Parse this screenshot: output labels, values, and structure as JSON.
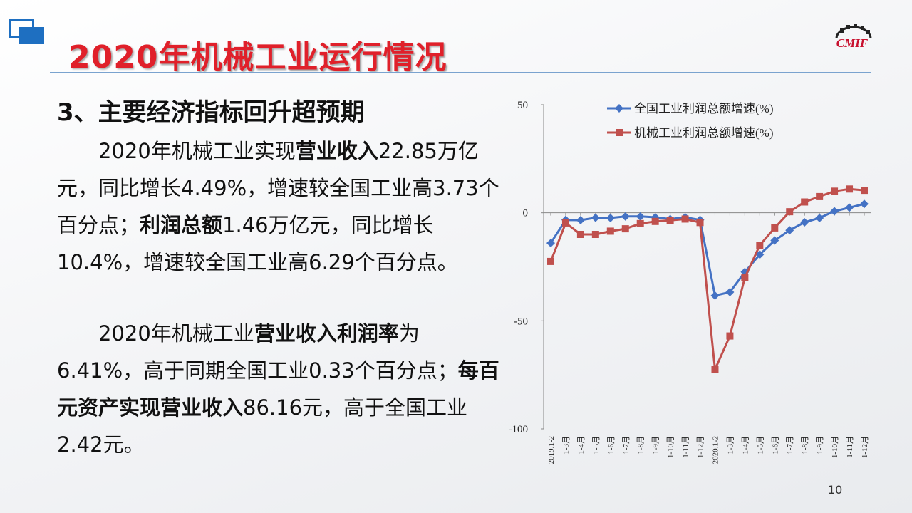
{
  "slide": {
    "title": "2020年机械工业运行情况",
    "heading": "3、主要经济指标回升超预期",
    "page_number": "10",
    "brand_logo_text": "CMIF"
  },
  "para1": {
    "s1": "　　2020年机械工业实现",
    "b1": "营业收入",
    "s2": "22.85万亿元，同比增长4.49%，增速较全国工业高3.73个百分点；",
    "b2": "利润总额",
    "s3": "1.46万亿元，同比增长10.4%，增速较全国工业高6.29个百分点。"
  },
  "para2": {
    "s1": "　　2020年机械工业",
    "b1": "营业收入利润率",
    "s2": "为6.41%，高于同期全国工业0.33个百分点；",
    "b2": "每百元资产实现营业收入",
    "s3": "86.16元，高于全国工业2.42元。"
  },
  "colors": {
    "accent_title": "#e0202a",
    "blue_series": "#4472c4",
    "red_series": "#c0504d",
    "logo_blue": "#1e6fc1"
  },
  "chart_data": {
    "type": "line",
    "categories": [
      "2019.1-2",
      "1-3月",
      "1-4月",
      "1-5月",
      "1-6月",
      "1-7月",
      "1-8月",
      "1-9月",
      "1-10月",
      "1-11月",
      "1-12月",
      "2020.1-2",
      "1-3月",
      "1-4月",
      "1-5月",
      "1-6月",
      "1-7月",
      "1-8月",
      "1-9月",
      "1-10月",
      "1-11月",
      "1-12月"
    ],
    "series": [
      {
        "name": "全国工业利润总额增速(%)",
        "color": "#4472c4",
        "marker": "diamond",
        "values": [
          -14,
          -3.3,
          -3.4,
          -2.3,
          -2.4,
          -1.7,
          -1.7,
          -2.1,
          -2.9,
          -2.1,
          -3.3,
          -38.3,
          -36.7,
          -27.4,
          -19.3,
          -12.8,
          -8.1,
          -4.4,
          -2.4,
          0.7,
          2.4,
          4.1
        ]
      },
      {
        "name": "机械工业利润总额增速(%)",
        "color": "#c0504d",
        "marker": "square",
        "values": [
          -22.5,
          -4.7,
          -10,
          -10,
          -8.5,
          -7.4,
          -5,
          -4,
          -3.5,
          -2.9,
          -4.5,
          -72.5,
          -57,
          -30,
          -15,
          -7,
          0.5,
          5,
          7.5,
          10,
          11,
          10.4
        ]
      }
    ],
    "y_ticks": [
      "50",
      "0",
      "-50",
      "-100"
    ],
    "ylim": [
      -100,
      50
    ],
    "legend_position": "top",
    "grid": false
  }
}
